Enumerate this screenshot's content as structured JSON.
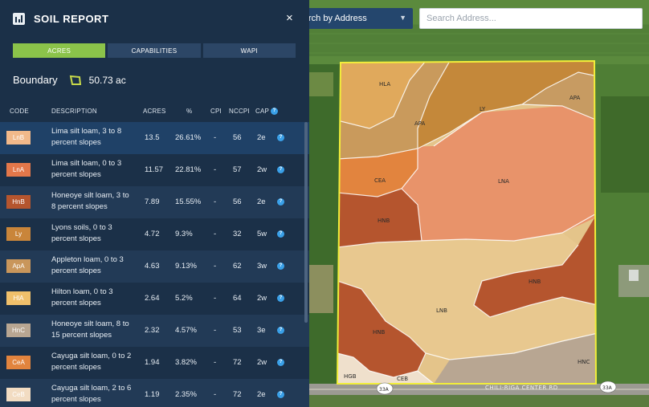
{
  "panel": {
    "title": "SOIL REPORT",
    "close": "×",
    "tabs": [
      "ACRES",
      "CAPABILITIES",
      "WAPI"
    ],
    "boundary_label": "Boundary",
    "boundary_value": "50.73 ac"
  },
  "table": {
    "headers": [
      "CODE",
      "DESCRIPTION",
      "ACRES",
      "%",
      "CPI",
      "NCCPI",
      "CAP"
    ],
    "rows": [
      {
        "code": "LnB",
        "color": "#f2b98a",
        "desc": "Lima silt loam, 3 to 8 percent slopes",
        "acres": "13.5",
        "pct": "26.61%",
        "cpi": "-",
        "nccpi": "56",
        "cap": "2e"
      },
      {
        "code": "LnA",
        "color": "#e3774a",
        "desc": "Lima silt loam, 0 to 3 percent slopes",
        "acres": "11.57",
        "pct": "22.81%",
        "cpi": "-",
        "nccpi": "57",
        "cap": "2w"
      },
      {
        "code": "HnB",
        "color": "#b5552e",
        "desc": "Honeoye silt loam, 3 to 8 percent slopes",
        "acres": "7.89",
        "pct": "15.55%",
        "cpi": "-",
        "nccpi": "56",
        "cap": "2e"
      },
      {
        "code": "Ly",
        "color": "#c9853a",
        "desc": "Lyons soils, 0 to 3 percent slopes",
        "acres": "4.72",
        "pct": "9.3%",
        "cpi": "-",
        "nccpi": "32",
        "cap": "5w"
      },
      {
        "code": "ApA",
        "color": "#c9965b",
        "desc": "Appleton loam, 0 to 3 percent slopes",
        "acres": "4.63",
        "pct": "9.13%",
        "cpi": "-",
        "nccpi": "62",
        "cap": "3w"
      },
      {
        "code": "HlA",
        "color": "#f0c06b",
        "desc": "Hilton loam, 0 to 3 percent slopes",
        "acres": "2.64",
        "pct": "5.2%",
        "cpi": "-",
        "nccpi": "64",
        "cap": "2w"
      },
      {
        "code": "HnC",
        "color": "#b8a692",
        "desc": "Honeoye silt loam, 8 to 15 percent slopes",
        "acres": "2.32",
        "pct": "4.57%",
        "cpi": "-",
        "nccpi": "53",
        "cap": "3e"
      },
      {
        "code": "CeA",
        "color": "#e2843e",
        "desc": "Cayuga silt loam, 0 to 2 percent slopes",
        "acres": "1.94",
        "pct": "3.82%",
        "cpi": "-",
        "nccpi": "72",
        "cap": "2w"
      },
      {
        "code": "CeB",
        "color": "#f2dcc2",
        "desc": "Cayuga silt loam, 2 to 6 percent slopes",
        "acres": "1.19",
        "pct": "2.35%",
        "cpi": "-",
        "nccpi": "72",
        "cap": "2e"
      }
    ]
  },
  "search": {
    "select_label": "rch by Address",
    "placeholder": "Search Address..."
  },
  "map": {
    "soil_labels": [
      "HLA",
      "APA",
      "LY",
      "APA",
      "CEA",
      "LNA",
      "HNB",
      "HNB",
      "LNB",
      "HNB",
      "HNC",
      "HGB",
      "CEB"
    ],
    "road_name": "CHILI-RIGA CENTER RD",
    "route_shield": "33A"
  }
}
